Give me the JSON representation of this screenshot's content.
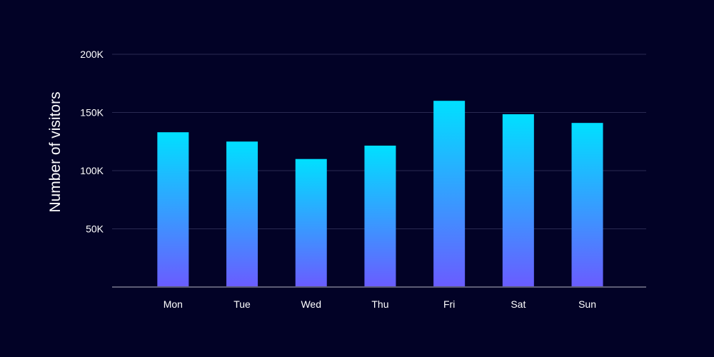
{
  "chart_data": {
    "type": "bar",
    "categories": [
      "Mon",
      "Tue",
      "Wed",
      "Thu",
      "Fri",
      "Sat",
      "Sun"
    ],
    "values": [
      133000,
      125000,
      110000,
      121500,
      160000,
      148500,
      141000
    ],
    "ylabel": "Number of visitors",
    "ylim": [
      0,
      200000
    ],
    "yticks": [
      {
        "value": 50000,
        "label": "50K"
      },
      {
        "value": 100000,
        "label": "100K"
      },
      {
        "value": 150000,
        "label": "150K"
      },
      {
        "value": 200000,
        "label": "200K"
      }
    ],
    "grid": true,
    "colors": {
      "background": "#020226",
      "bar_top": "#00e0ff",
      "bar_bottom": "#6a5cff",
      "gridline": "#2a2a52",
      "baseline": "#5c5c74",
      "text": "#ffffff"
    }
  }
}
